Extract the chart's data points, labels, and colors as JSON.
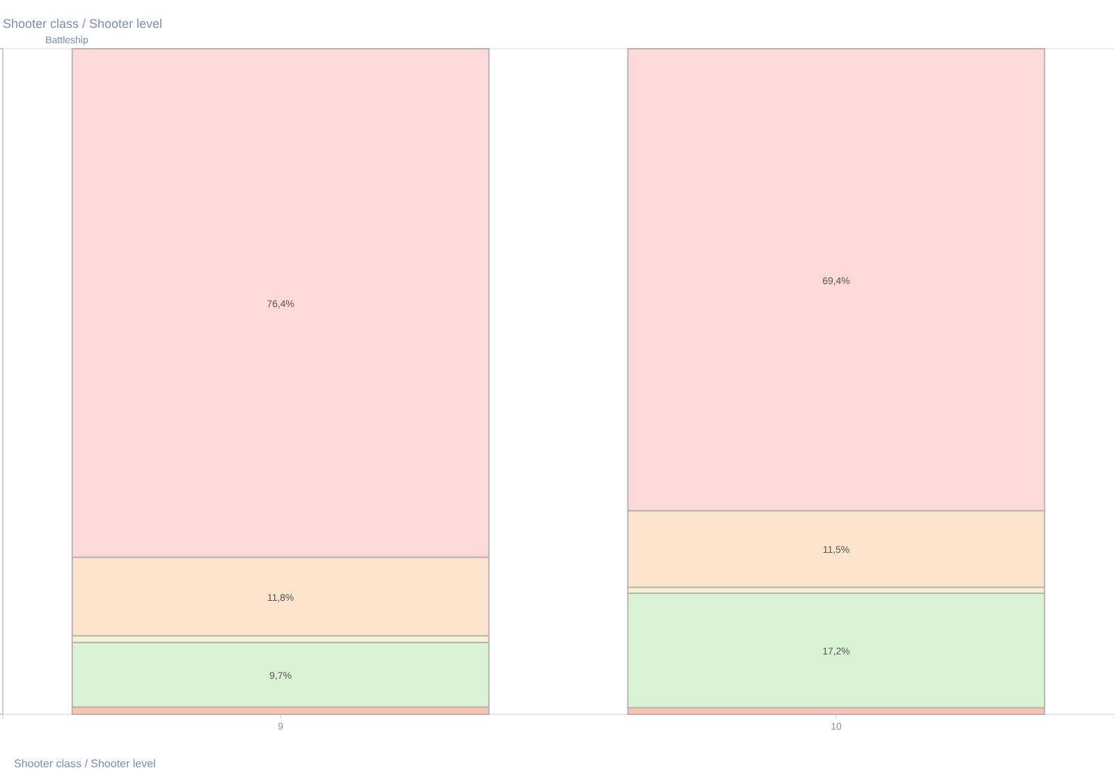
{
  "chart_data": {
    "type": "bar",
    "title": "Shooter class  /  Shooter level",
    "subtitle": "Battleship",
    "xlabel": "Shooter class  /  Shooter level",
    "categories": [
      "9",
      "10"
    ],
    "stacked": true,
    "ylim": [
      0,
      100
    ],
    "tick_labels": "x",
    "series": [
      {
        "color": "#f7c4b4",
        "values": [
          1.1,
          1.0
        ],
        "value_labels": [
          null,
          null
        ]
      },
      {
        "color": "#daf3d4",
        "values": [
          9.7,
          17.2
        ],
        "value_labels": [
          "9,7%",
          "17,2%"
        ]
      },
      {
        "color": "#f4f1d6",
        "values": [
          1.0,
          0.9
        ],
        "value_labels": [
          null,
          null
        ]
      },
      {
        "color": "#fde5cd",
        "values": [
          11.8,
          11.5
        ],
        "value_labels": [
          "11,8%",
          "11,5%"
        ]
      },
      {
        "color": "#fdd9d9",
        "values": [
          76.4,
          69.4
        ],
        "value_labels": [
          "76,4%",
          "69,4%"
        ]
      }
    ]
  }
}
